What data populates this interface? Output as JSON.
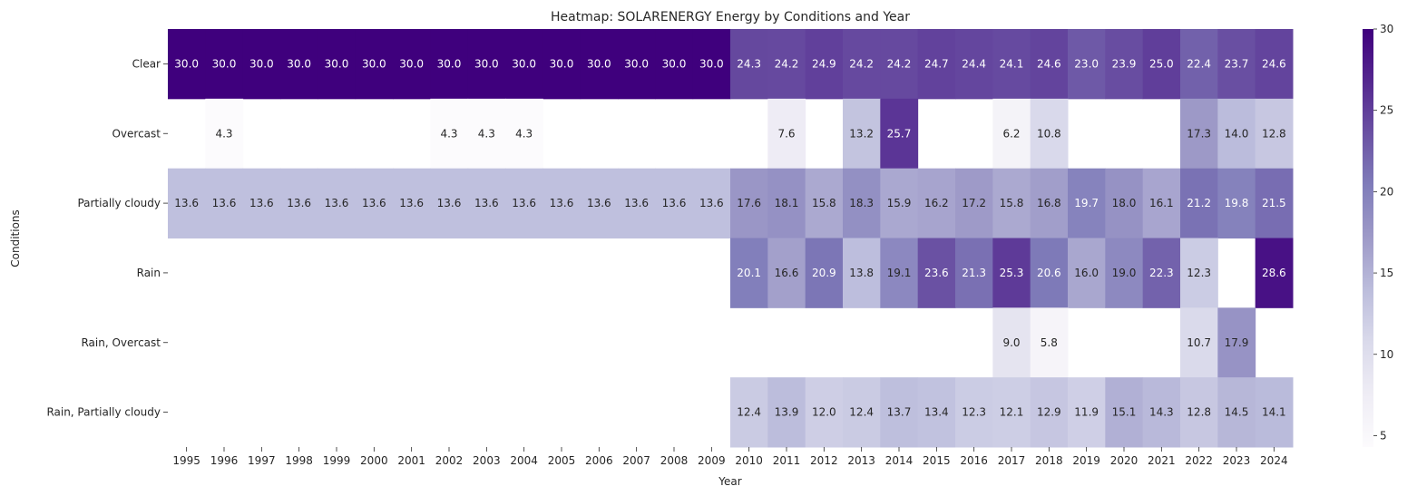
{
  "chart_data": {
    "type": "heatmap",
    "title": "Heatmap: SOLARENERGY Energy by Conditions and Year",
    "xlabel": "Year",
    "ylabel": "Conditions",
    "x": [
      "1995",
      "1996",
      "1997",
      "1998",
      "1999",
      "2000",
      "2001",
      "2002",
      "2003",
      "2004",
      "2005",
      "2006",
      "2007",
      "2008",
      "2009",
      "2010",
      "2011",
      "2012",
      "2013",
      "2014",
      "2015",
      "2016",
      "2017",
      "2018",
      "2019",
      "2020",
      "2021",
      "2022",
      "2023",
      "2024"
    ],
    "y": [
      "Clear",
      "Overcast",
      "Partially cloudy",
      "Rain",
      "Rain, Overcast",
      "Rain, Partially cloudy"
    ],
    "values": [
      [
        30.0,
        30.0,
        30.0,
        30.0,
        30.0,
        30.0,
        30.0,
        30.0,
        30.0,
        30.0,
        30.0,
        30.0,
        30.0,
        30.0,
        30.0,
        24.3,
        24.2,
        24.9,
        24.2,
        24.2,
        24.7,
        24.4,
        24.1,
        24.6,
        23.0,
        23.9,
        25.0,
        22.4,
        23.7,
        24.6
      ],
      [
        null,
        4.3,
        null,
        null,
        null,
        null,
        null,
        4.3,
        4.3,
        4.3,
        null,
        null,
        null,
        null,
        null,
        null,
        7.6,
        null,
        13.2,
        25.7,
        null,
        null,
        6.2,
        10.8,
        null,
        null,
        null,
        17.3,
        14.0,
        12.8
      ],
      [
        13.6,
        13.6,
        13.6,
        13.6,
        13.6,
        13.6,
        13.6,
        13.6,
        13.6,
        13.6,
        13.6,
        13.6,
        13.6,
        13.6,
        13.6,
        17.6,
        18.1,
        15.8,
        18.3,
        15.9,
        16.2,
        17.2,
        15.8,
        16.8,
        19.7,
        18.0,
        16.1,
        21.2,
        19.8,
        21.5
      ],
      [
        null,
        null,
        null,
        null,
        null,
        null,
        null,
        null,
        null,
        null,
        null,
        null,
        null,
        null,
        null,
        20.1,
        16.6,
        20.9,
        13.8,
        19.1,
        23.6,
        21.3,
        25.3,
        20.6,
        16.0,
        19.0,
        22.3,
        12.3,
        null,
        28.6
      ],
      [
        null,
        null,
        null,
        null,
        null,
        null,
        null,
        null,
        null,
        null,
        null,
        null,
        null,
        null,
        null,
        null,
        null,
        null,
        null,
        null,
        null,
        null,
        9.0,
        5.8,
        null,
        null,
        null,
        10.7,
        17.9,
        null
      ],
      [
        null,
        null,
        null,
        null,
        null,
        null,
        null,
        null,
        null,
        null,
        null,
        null,
        null,
        null,
        null,
        12.4,
        13.9,
        12.0,
        12.4,
        13.7,
        13.4,
        12.3,
        12.1,
        12.9,
        11.9,
        15.1,
        14.3,
        12.8,
        14.5,
        14.1
      ]
    ],
    "colormap": "Purples",
    "vmin": 4.3,
    "vmax": 30.0,
    "colorbar_ticks": [
      5,
      10,
      15,
      20,
      25,
      30
    ],
    "cell_labels_format": "0.1f"
  }
}
